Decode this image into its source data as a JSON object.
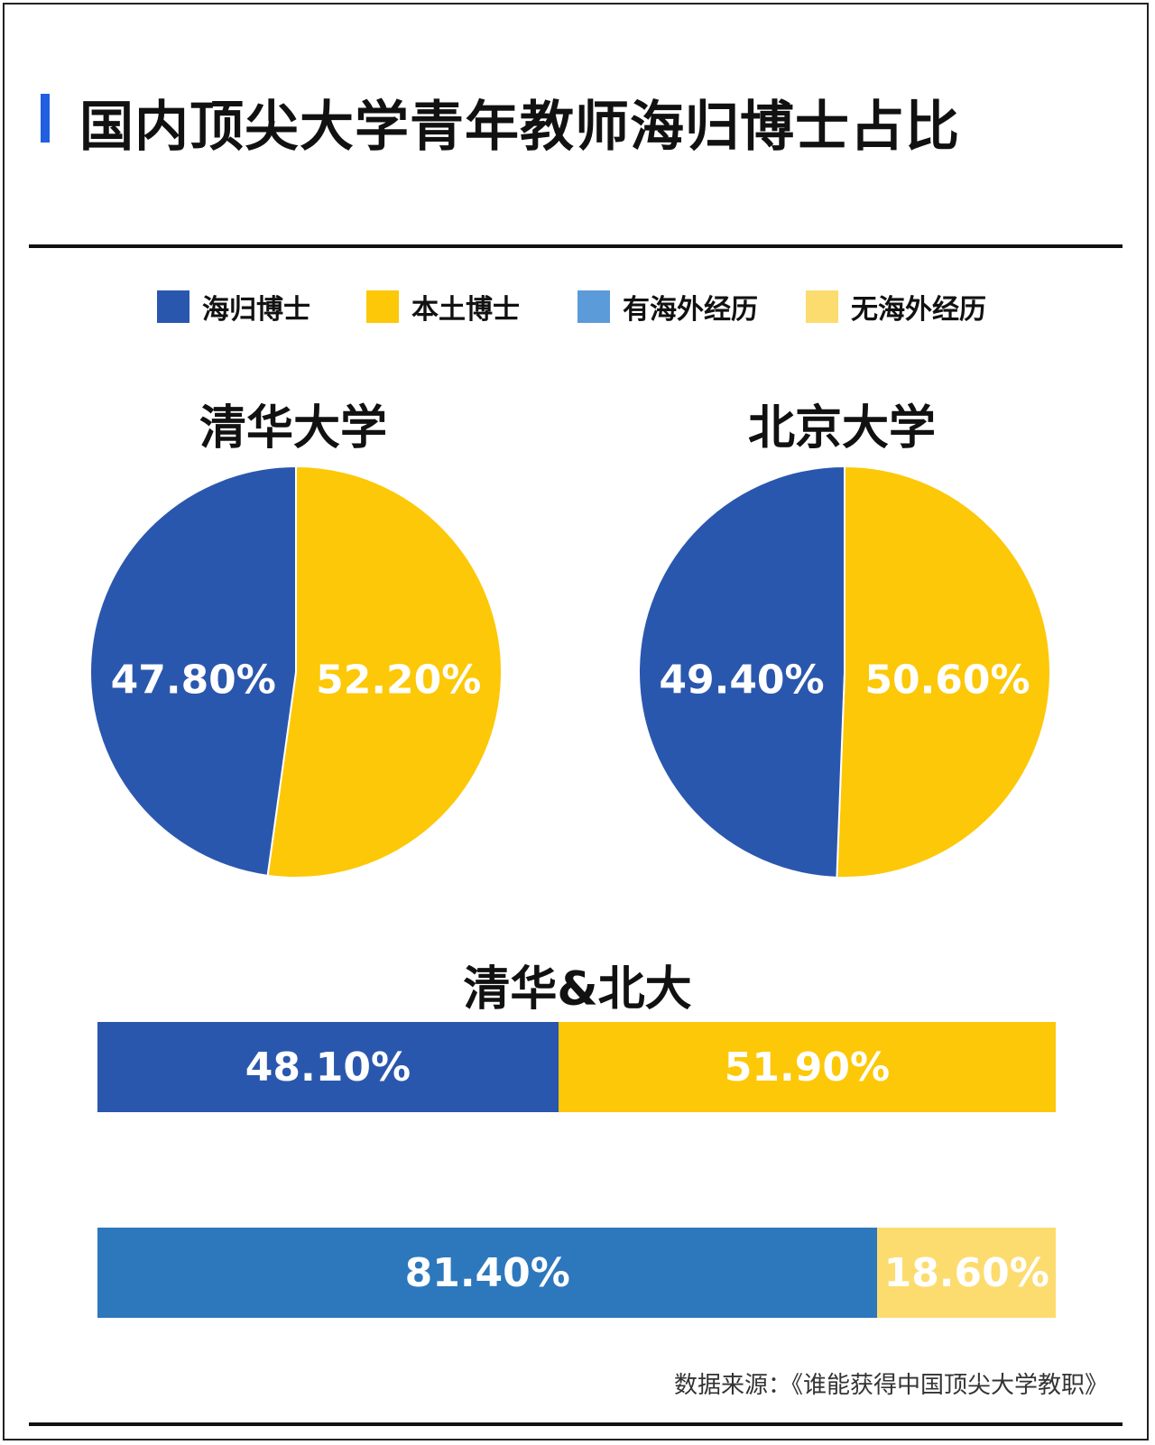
{
  "title": "国内顶尖大学青年教师海归博士占比",
  "colors": {
    "haigui": "#2a57ae",
    "bentu": "#fcc807",
    "overseas": "#2d77bd",
    "no_overseas": "#fcdc6f",
    "title_bar": "#1f5fe0"
  },
  "legend": [
    {
      "label": "海归博士",
      "color": "#2a57ae"
    },
    {
      "label": "本土博士",
      "color": "#fcc807"
    },
    {
      "label": "有海外经历",
      "color": "#5b9bd9"
    },
    {
      "label": "无海外经历",
      "color": "#fcdc6f"
    }
  ],
  "chart_data": [
    {
      "type": "pie",
      "title": "清华大学",
      "categories": [
        "海归博士",
        "本土博士"
      ],
      "values": [
        47.8,
        52.2
      ],
      "labels": [
        "47.80%",
        "52.20%"
      ],
      "colors": [
        "#2a57ae",
        "#fcc807"
      ]
    },
    {
      "type": "pie",
      "title": "北京大学",
      "categories": [
        "海归博士",
        "本土博士"
      ],
      "values": [
        49.4,
        50.6
      ],
      "labels": [
        "49.40%",
        "50.60%"
      ],
      "colors": [
        "#2a57ae",
        "#fcc807"
      ]
    },
    {
      "type": "bar",
      "stacked": true,
      "orientation": "horizontal",
      "title": "清华&北大",
      "categories": [
        "海归博士",
        "本土博士"
      ],
      "values": [
        48.1,
        51.9
      ],
      "labels": [
        "48.10%",
        "51.90%"
      ],
      "colors": [
        "#2a57ae",
        "#fcc807"
      ]
    },
    {
      "type": "bar",
      "stacked": true,
      "orientation": "horizontal",
      "title": "",
      "categories": [
        "有海外经历",
        "无海外经历"
      ],
      "values": [
        81.4,
        18.6
      ],
      "labels": [
        "81.40%",
        "18.60%"
      ],
      "colors": [
        "#2d77bd",
        "#fcdc6f"
      ]
    }
  ],
  "source": "数据来源：《谁能获得中国顶尖大学教职》"
}
